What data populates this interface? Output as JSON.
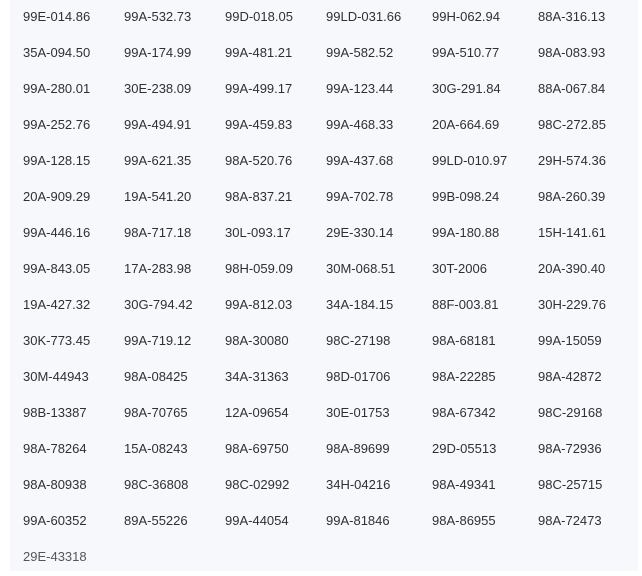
{
  "plates": [
    [
      "99E-014.86",
      "99A-532.73",
      "99D-018.05",
      "99LD-031.66",
      "99H-062.94",
      "88A-316.13"
    ],
    [
      "35A-094.50",
      "99A-174.99",
      "99A-481.21",
      "99A-582.52",
      "99A-510.77",
      "98A-083.93"
    ],
    [
      "99A-280.01",
      "30E-238.09",
      "99A-499.17",
      "99A-123.44",
      "30G-291.84",
      "88A-067.84"
    ],
    [
      "99A-252.76",
      "99A-494.91",
      "99A-459.83",
      "99A-468.33",
      "20A-664.69",
      "98C-272.85"
    ],
    [
      "99A-128.15",
      "99A-621.35",
      "98A-520.76",
      "99A-437.68",
      "99LD-010.97",
      "29H-574.36"
    ],
    [
      "20A-909.29",
      "19A-541.20",
      "98A-837.21",
      "99A-702.78",
      "99B-098.24",
      "98A-260.39"
    ],
    [
      "99A-446.16",
      "98A-717.18",
      "30L-093.17",
      "29E-330.14",
      "99A-180.88",
      "15H-141.61"
    ],
    [
      "99A-843.05",
      "17A-283.98",
      "98H-059.09",
      "30M-068.51",
      "30T-2006",
      "20A-390.40"
    ],
    [
      "19A-427.32",
      "30G-794.42",
      "99A-812.03",
      "34A-184.15",
      "88F-003.81",
      "30H-229.76"
    ],
    [
      "30K-773.45",
      "99A-719.12",
      "98A-30080",
      "98C-27198",
      "98A-68181",
      "99A-15059"
    ],
    [
      "30M-44943",
      "98A-08425",
      "34A-31363",
      "98D-01706",
      "98A-22285",
      "98A-42872"
    ],
    [
      "98B-13387",
      "98A-70765",
      "12A-09654",
      "30E-01753",
      "98A-67342",
      "98C-29168"
    ],
    [
      "98A-78264",
      "15A-08243",
      "98A-69750",
      "98A-89699",
      "29D-05513",
      "98A-72936"
    ],
    [
      "98A-80938",
      "98C-36808",
      "98C-02992",
      "34H-04216",
      "98A-49341",
      "98C-25715"
    ],
    [
      "99A-60352",
      "89A-55226",
      "99A-44054",
      "99A-81846",
      "98A-86955",
      "98A-72473"
    ],
    [
      "29E-43318"
    ]
  ]
}
